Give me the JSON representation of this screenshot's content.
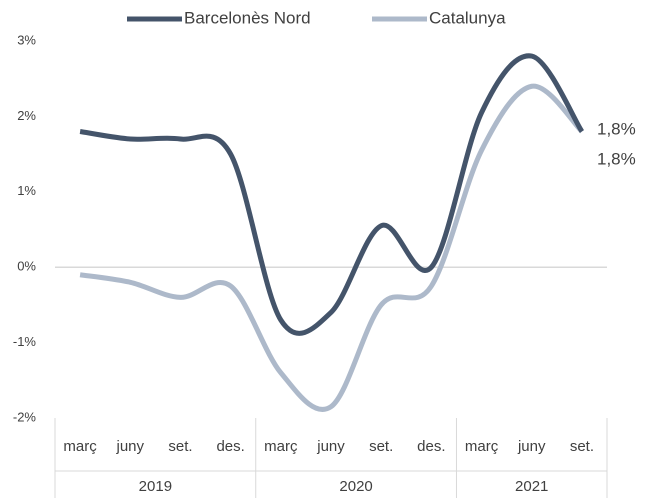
{
  "chart_data": {
    "type": "line",
    "groups": [
      {
        "name": "2019",
        "categories": [
          "març",
          "juny",
          "set.",
          "des."
        ]
      },
      {
        "name": "2020",
        "categories": [
          "març",
          "juny",
          "set.",
          "des."
        ]
      },
      {
        "name": "2021",
        "categories": [
          "març",
          "juny",
          "set."
        ]
      }
    ],
    "series": [
      {
        "name": "Barcelonès Nord",
        "color": "#44546a",
        "values": [
          1.8,
          1.7,
          1.7,
          1.5,
          -0.7,
          -0.6,
          0.55,
          0.0,
          2.05,
          2.8,
          1.8
        ],
        "value_labels": [
          null,
          null,
          null,
          null,
          null,
          null,
          null,
          null,
          null,
          null,
          "1,8%"
        ]
      },
      {
        "name": "Catalunya",
        "color": "#adb9ca",
        "values": [
          -0.1,
          -0.2,
          -0.4,
          -0.25,
          -1.4,
          -1.85,
          -0.5,
          -0.25,
          1.55,
          2.4,
          1.8
        ],
        "value_labels": [
          null,
          null,
          null,
          null,
          null,
          null,
          null,
          null,
          null,
          null,
          "1,8%"
        ]
      }
    ],
    "ylim": [
      -2,
      3
    ],
    "yticks": [
      {
        "value": -2,
        "label": "-2%"
      },
      {
        "value": -1,
        "label": "-1%"
      },
      {
        "value": 0,
        "label": "0%"
      },
      {
        "value": 1,
        "label": "1%"
      },
      {
        "value": 2,
        "label": "2%"
      },
      {
        "value": 3,
        "label": "3%"
      }
    ],
    "legend": "top"
  }
}
